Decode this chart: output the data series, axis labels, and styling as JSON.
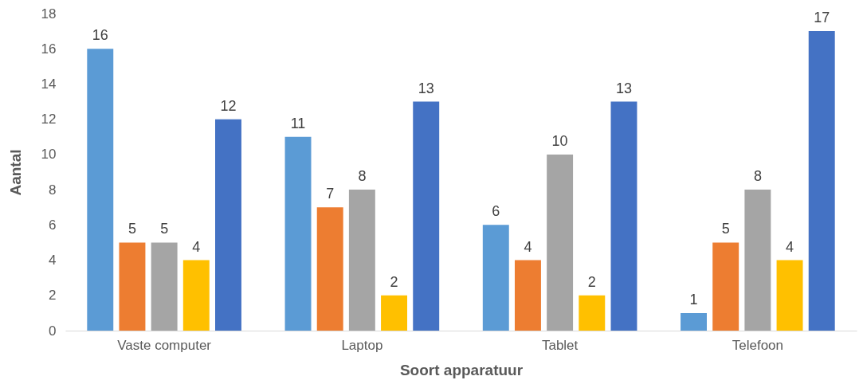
{
  "chart_data": {
    "type": "bar",
    "xlabel": "Soort apparatuur",
    "ylabel": "Aantal",
    "categories": [
      "Vaste computer",
      "Laptop",
      "Tablet",
      "Telefoon"
    ],
    "series": [
      {
        "color": "#5b9bd5",
        "values": [
          16,
          11,
          6,
          1
        ]
      },
      {
        "color": "#ed7d31",
        "values": [
          5,
          7,
          4,
          5
        ]
      },
      {
        "color": "#a5a5a5",
        "values": [
          5,
          8,
          10,
          8
        ]
      },
      {
        "color": "#ffc000",
        "values": [
          4,
          2,
          2,
          4
        ]
      },
      {
        "color": "#4472c4",
        "values": [
          12,
          13,
          13,
          17
        ]
      }
    ],
    "ylim": [
      0,
      18
    ],
    "yticks": [
      0,
      2,
      4,
      6,
      8,
      10,
      12,
      14,
      16,
      18
    ],
    "data_labels": true
  }
}
